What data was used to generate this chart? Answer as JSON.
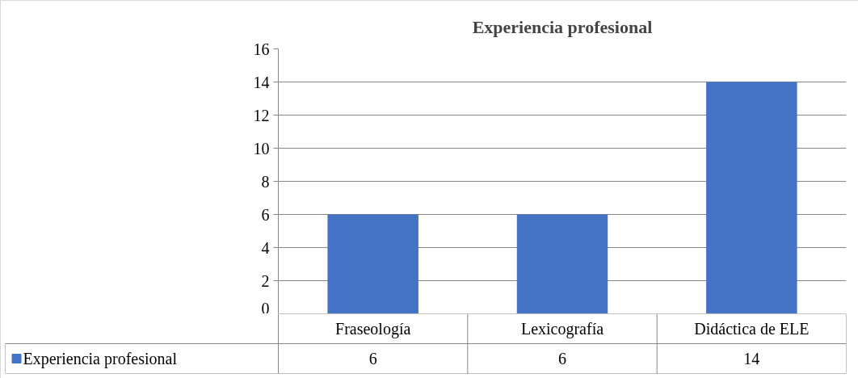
{
  "chart_data": {
    "type": "bar",
    "title": "Experiencia profesional",
    "categories": [
      "Fraseología",
      "Lexicografía",
      "Didáctica de ELE"
    ],
    "series": [
      {
        "name": "Experiencia profesional",
        "color": "#4472c4",
        "values": [
          6,
          6,
          14
        ]
      }
    ],
    "ylim": [
      0,
      16
    ],
    "yticks": [
      0,
      2,
      4,
      6,
      8,
      10,
      12,
      14,
      16
    ],
    "grid": "y",
    "legend": "bottom",
    "data_labels": true
  }
}
